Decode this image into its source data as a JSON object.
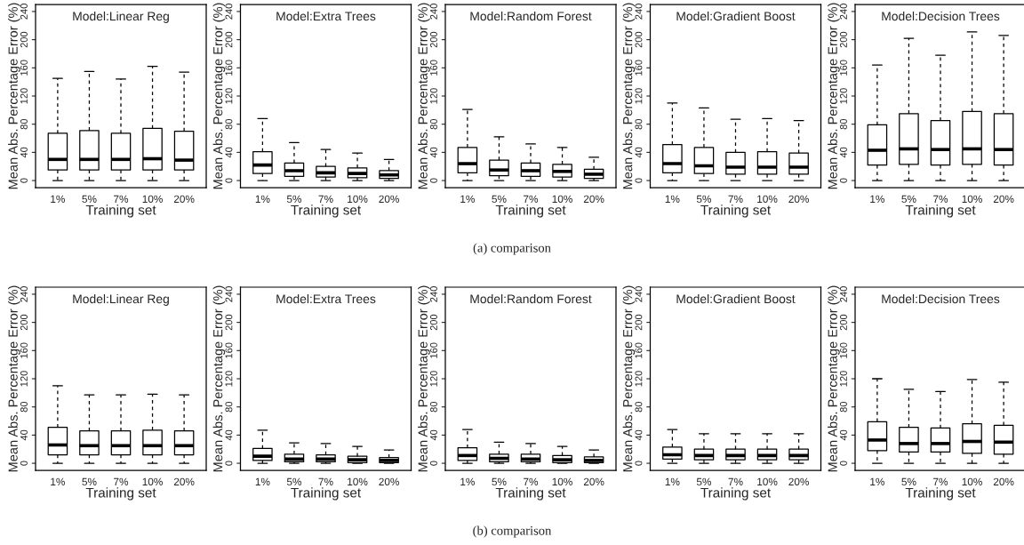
{
  "chart_data": [
    {
      "type": "box",
      "title": "Model:Linear Reg",
      "xlabel": "Training set",
      "ylabel": "Mean Abs. Percentage Error (%)",
      "categories": [
        "1%",
        "5%",
        "7%",
        "10%",
        "20%"
      ],
      "ylim": [
        -10,
        250
      ],
      "yticks": [
        0,
        40,
        80,
        120,
        160,
        200,
        240
      ],
      "boxes": [
        {
          "low": 0,
          "q1": 15,
          "median": 30,
          "q3": 67,
          "high": 145
        },
        {
          "low": 0,
          "q1": 15,
          "median": 30,
          "q3": 71,
          "high": 155
        },
        {
          "low": 0,
          "q1": 15,
          "median": 30,
          "q3": 67,
          "high": 144
        },
        {
          "low": 0,
          "q1": 15,
          "median": 31,
          "q3": 74,
          "high": 162
        },
        {
          "low": 0,
          "q1": 15,
          "median": 29,
          "q3": 70,
          "high": 154
        }
      ]
    },
    {
      "type": "box",
      "title": "Model:Extra Trees",
      "xlabel": "Training set",
      "ylabel": "Mean Abs. Percentage Error (%)",
      "categories": [
        "1%",
        "5%",
        "7%",
        "10%",
        "20%"
      ],
      "ylim": [
        -10,
        250
      ],
      "yticks": [
        0,
        40,
        80,
        120,
        160,
        200,
        240
      ],
      "boxes": [
        {
          "low": 0,
          "q1": 10,
          "median": 22,
          "q3": 41,
          "high": 88
        },
        {
          "low": 0,
          "q1": 6,
          "median": 14,
          "q3": 25,
          "high": 54
        },
        {
          "low": 0,
          "q1": 5,
          "median": 11,
          "q3": 20,
          "high": 44
        },
        {
          "low": 0,
          "q1": 4,
          "median": 10,
          "q3": 18,
          "high": 39
        },
        {
          "low": 0,
          "q1": 3,
          "median": 8,
          "q3": 14,
          "high": 30
        }
      ]
    },
    {
      "type": "box",
      "title": "Model:Random Forest",
      "xlabel": "Training set",
      "ylabel": "Mean Abs. Percentage Error (%)",
      "categories": [
        "1%",
        "5%",
        "7%",
        "10%",
        "20%"
      ],
      "ylim": [
        -10,
        250
      ],
      "yticks": [
        0,
        40,
        80,
        120,
        160,
        200,
        240
      ],
      "boxes": [
        {
          "low": 0,
          "q1": 11,
          "median": 24,
          "q3": 47,
          "high": 101
        },
        {
          "low": 0,
          "q1": 7,
          "median": 15,
          "q3": 29,
          "high": 62
        },
        {
          "low": 0,
          "q1": 6,
          "median": 14,
          "q3": 25,
          "high": 52
        },
        {
          "low": 0,
          "q1": 5,
          "median": 13,
          "q3": 23,
          "high": 47
        },
        {
          "low": 0,
          "q1": 3,
          "median": 9,
          "q3": 16,
          "high": 33
        }
      ],
      "annotations": [
        "(a) comparison"
      ]
    },
    {
      "type": "box",
      "title": "Model:Gradient Boost",
      "xlabel": "Training set",
      "ylabel": "Mean Abs. Percentage Error (%)",
      "categories": [
        "1%",
        "5%",
        "7%",
        "10%",
        "20%"
      ],
      "ylim": [
        -10,
        250
      ],
      "yticks": [
        0,
        40,
        80,
        120,
        160,
        200,
        240
      ],
      "boxes": [
        {
          "low": 0,
          "q1": 11,
          "median": 24,
          "q3": 51,
          "high": 110
        },
        {
          "low": 0,
          "q1": 10,
          "median": 21,
          "q3": 47,
          "high": 103
        },
        {
          "low": 0,
          "q1": 9,
          "median": 19,
          "q3": 40,
          "high": 87
        },
        {
          "low": 0,
          "q1": 9,
          "median": 19,
          "q3": 41,
          "high": 88
        },
        {
          "low": 0,
          "q1": 9,
          "median": 19,
          "q3": 39,
          "high": 85
        }
      ]
    },
    {
      "type": "box",
      "title": "Model:Decision Trees",
      "xlabel": "Training set",
      "ylabel": "Mean Abs. Percentage Error (%)",
      "categories": [
        "1%",
        "5%",
        "7%",
        "10%",
        "20%"
      ],
      "ylim": [
        -10,
        250
      ],
      "yticks": [
        0,
        40,
        80,
        120,
        160,
        200,
        240
      ],
      "boxes": [
        {
          "low": 0,
          "q1": 22,
          "median": 43,
          "q3": 79,
          "high": 164
        },
        {
          "low": 0,
          "q1": 23,
          "median": 45,
          "q3": 95,
          "high": 202
        },
        {
          "low": 0,
          "q1": 22,
          "median": 44,
          "q3": 85,
          "high": 178
        },
        {
          "low": 0,
          "q1": 23,
          "median": 45,
          "q3": 98,
          "high": 211
        },
        {
          "low": 0,
          "q1": 22,
          "median": 44,
          "q3": 95,
          "high": 206
        }
      ]
    },
    {
      "type": "box",
      "title": "Model:Linear Reg",
      "xlabel": "Training set",
      "ylabel": "Mean Abs. Percentage Error (%)",
      "categories": [
        "1%",
        "5%",
        "7%",
        "10%",
        "20%"
      ],
      "ylim": [
        -10,
        250
      ],
      "yticks": [
        0,
        40,
        80,
        120,
        160,
        200,
        240
      ],
      "boxes": [
        {
          "low": 0,
          "q1": 12,
          "median": 26,
          "q3": 51,
          "high": 110
        },
        {
          "low": 0,
          "q1": 12,
          "median": 25,
          "q3": 46,
          "high": 97
        },
        {
          "low": 0,
          "q1": 12,
          "median": 25,
          "q3": 46,
          "high": 97
        },
        {
          "low": 0,
          "q1": 12,
          "median": 25,
          "q3": 47,
          "high": 98
        },
        {
          "low": 0,
          "q1": 12,
          "median": 25,
          "q3": 46,
          "high": 97
        }
      ]
    },
    {
      "type": "box",
      "title": "Model:Extra Trees",
      "xlabel": "Training set",
      "ylabel": "Mean Abs. Percentage Error (%)",
      "categories": [
        "1%",
        "5%",
        "7%",
        "10%",
        "20%"
      ],
      "ylim": [
        -10,
        250
      ],
      "yticks": [
        0,
        40,
        80,
        120,
        160,
        200,
        240
      ],
      "boxes": [
        {
          "low": 0,
          "q1": 4,
          "median": 10,
          "q3": 21,
          "high": 47
        },
        {
          "low": 0,
          "q1": 2,
          "median": 6,
          "q3": 13,
          "high": 29
        },
        {
          "low": 0,
          "q1": 2,
          "median": 6,
          "q3": 12,
          "high": 28
        },
        {
          "low": 0,
          "q1": 1,
          "median": 5,
          "q3": 10,
          "high": 24
        },
        {
          "low": 0,
          "q1": 1,
          "median": 4,
          "q3": 8,
          "high": 19
        }
      ]
    },
    {
      "type": "box",
      "title": "Model:Random Forest",
      "xlabel": "Training set",
      "ylabel": "Mean Abs. Percentage Error (%)",
      "categories": [
        "1%",
        "5%",
        "7%",
        "10%",
        "20%"
      ],
      "ylim": [
        -10,
        250
      ],
      "yticks": [
        0,
        40,
        80,
        120,
        160,
        200,
        240
      ],
      "boxes": [
        {
          "low": 0,
          "q1": 4,
          "median": 11,
          "q3": 22,
          "high": 48
        },
        {
          "low": 0,
          "q1": 2,
          "median": 7,
          "q3": 13,
          "high": 30
        },
        {
          "low": 0,
          "q1": 2,
          "median": 6,
          "q3": 13,
          "high": 28
        },
        {
          "low": 0,
          "q1": 1,
          "median": 5,
          "q3": 11,
          "high": 24
        },
        {
          "low": 0,
          "q1": 1,
          "median": 4,
          "q3": 9,
          "high": 19
        }
      ],
      "annotations": [
        "(b) comparison"
      ]
    },
    {
      "type": "box",
      "title": "Model:Gradient Boost",
      "xlabel": "Training set",
      "ylabel": "Mean Abs. Percentage Error (%)",
      "categories": [
        "1%",
        "5%",
        "7%",
        "10%",
        "20%"
      ],
      "ylim": [
        -10,
        250
      ],
      "yticks": [
        0,
        40,
        80,
        120,
        160,
        200,
        240
      ],
      "boxes": [
        {
          "low": 0,
          "q1": 6,
          "median": 12,
          "q3": 23,
          "high": 48
        },
        {
          "low": 0,
          "q1": 5,
          "median": 11,
          "q3": 20,
          "high": 42
        },
        {
          "low": 0,
          "q1": 5,
          "median": 11,
          "q3": 20,
          "high": 42
        },
        {
          "low": 0,
          "q1": 5,
          "median": 11,
          "q3": 20,
          "high": 42
        },
        {
          "low": 0,
          "q1": 5,
          "median": 11,
          "q3": 20,
          "high": 42
        }
      ]
    },
    {
      "type": "box",
      "title": "Model:Decision Trees",
      "xlabel": "Training set",
      "ylabel": "Mean Abs. Percentage Error (%)",
      "categories": [
        "1%",
        "5%",
        "7%",
        "10%",
        "20%"
      ],
      "ylim": [
        -10,
        250
      ],
      "yticks": [
        0,
        40,
        80,
        120,
        160,
        200,
        240
      ],
      "boxes": [
        {
          "low": 0,
          "q1": 18,
          "median": 33,
          "q3": 59,
          "high": 120
        },
        {
          "low": 0,
          "q1": 16,
          "median": 28,
          "q3": 51,
          "high": 105
        },
        {
          "low": 0,
          "q1": 16,
          "median": 28,
          "q3": 50,
          "high": 102
        },
        {
          "low": 0,
          "q1": 14,
          "median": 31,
          "q3": 56,
          "high": 119
        },
        {
          "low": 0,
          "q1": 13,
          "median": 30,
          "q3": 54,
          "high": 115
        }
      ]
    }
  ]
}
